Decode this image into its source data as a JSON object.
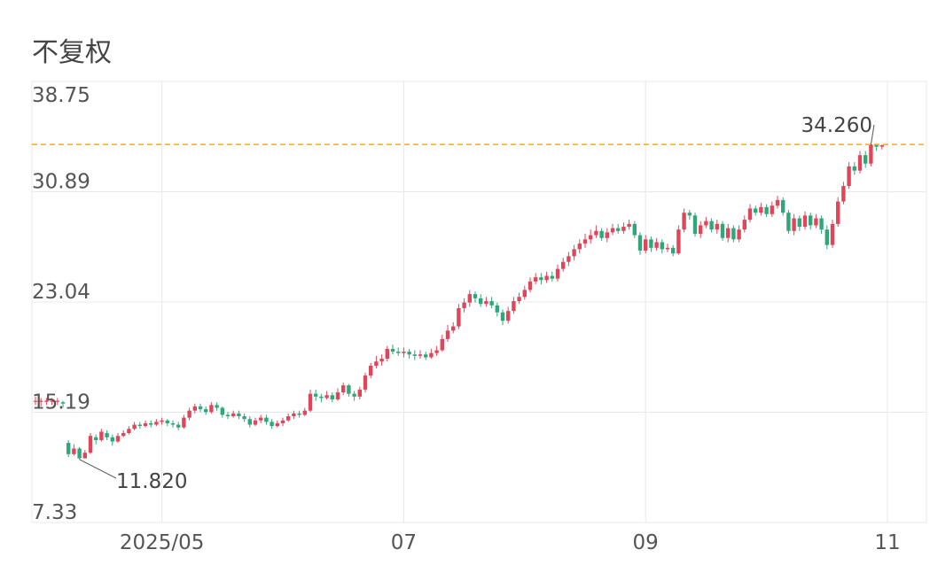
{
  "chart_data": {
    "type": "candlestick",
    "title": "不复权",
    "ylim": [
      7.33,
      38.75
    ],
    "y_ticks": [
      "38.75",
      "30.89",
      "23.04",
      "15.19",
      "7.33"
    ],
    "x_ticks": [
      {
        "label": "2025/05",
        "index": 23
      },
      {
        "label": "07",
        "index": 67
      },
      {
        "label": "09",
        "index": 111
      },
      {
        "label": "11",
        "index": 155
      }
    ],
    "reference_line": {
      "value": 34.26,
      "color": "#f5a623"
    },
    "annotations": {
      "high": "34.260",
      "low": "11.820"
    },
    "colors": {
      "up": "#e0455a",
      "down": "#2ea77a",
      "grid": "#e8e8e8"
    },
    "candles": [
      [
        16,
        16,
        16.3,
        15.7
      ],
      [
        16,
        16,
        16.2,
        15.6
      ],
      [
        16,
        16,
        16.2,
        15.7
      ],
      [
        16,
        16,
        16.2,
        15.7
      ],
      [
        16,
        16,
        16.2,
        15.7
      ],
      [
        15.9,
        15.8,
        16,
        15.5
      ],
      [
        13,
        12.2,
        13.2,
        12
      ],
      [
        12.2,
        12.6,
        12.9,
        12.1
      ],
      [
        12.6,
        11.9,
        12.7,
        11.82
      ],
      [
        11.9,
        12.3,
        12.5,
        11.9
      ],
      [
        12.3,
        13.5,
        13.7,
        12.2
      ],
      [
        13.4,
        13.2,
        13.6,
        12.9
      ],
      [
        13.2,
        13.8,
        14,
        13.1
      ],
      [
        13.7,
        13.4,
        13.9,
        13.2
      ],
      [
        13.4,
        13.1,
        13.6,
        12.8
      ],
      [
        13.1,
        13.5,
        13.7,
        13
      ],
      [
        13.5,
        13.7,
        13.9,
        13.4
      ],
      [
        13.7,
        14,
        14.2,
        13.6
      ],
      [
        14,
        14.3,
        14.5,
        13.9
      ],
      [
        14.3,
        14.2,
        14.5,
        14
      ],
      [
        14.2,
        14.4,
        14.6,
        14.1
      ],
      [
        14.4,
        14.3,
        14.6,
        14.1
      ],
      [
        14.3,
        14.5,
        14.7,
        14.2
      ],
      [
        14.5,
        14.6,
        14.8,
        14.3
      ],
      [
        14.6,
        14.4,
        14.7,
        14.2
      ],
      [
        14.4,
        14.3,
        14.6,
        14.1
      ],
      [
        14.3,
        14.1,
        14.5,
        13.9
      ],
      [
        14.1,
        14.8,
        15,
        14
      ],
      [
        14.8,
        15.3,
        15.5,
        14.6
      ],
      [
        15.3,
        15.6,
        15.8,
        15.1
      ],
      [
        15.6,
        15.4,
        15.8,
        15.2
      ],
      [
        15.4,
        15.2,
        15.6,
        15
      ],
      [
        15.2,
        15.7,
        15.9,
        15.1
      ],
      [
        15.7,
        15.5,
        15.9,
        15.3
      ],
      [
        15.5,
        15,
        15.6,
        14.8
      ],
      [
        15,
        14.9,
        15.2,
        14.7
      ],
      [
        14.9,
        15.1,
        15.3,
        14.8
      ],
      [
        15.1,
        14.9,
        15.3,
        14.7
      ],
      [
        14.9,
        14.7,
        15.1,
        14.5
      ],
      [
        14.7,
        14.3,
        14.9,
        14.1
      ],
      [
        14.3,
        14.6,
        14.8,
        14.2
      ],
      [
        14.6,
        14.8,
        15,
        14.4
      ],
      [
        14.8,
        14.5,
        15,
        14.3
      ],
      [
        14.5,
        14.2,
        14.7,
        14
      ],
      [
        14.2,
        14.4,
        14.6,
        14.1
      ],
      [
        14.4,
        14.6,
        14.8,
        14.2
      ],
      [
        14.6,
        14.9,
        15.1,
        14.5
      ],
      [
        14.9,
        15.1,
        15.3,
        14.7
      ],
      [
        15.1,
        15,
        15.3,
        14.8
      ],
      [
        15,
        15.3,
        15.5,
        14.9
      ],
      [
        15.3,
        16.5,
        16.8,
        15.2
      ],
      [
        16.5,
        16.3,
        16.8,
        16
      ],
      [
        16.3,
        16.2,
        16.5,
        15.9
      ],
      [
        16.2,
        16.4,
        16.7,
        16.1
      ],
      [
        16.4,
        16.1,
        16.6,
        15.9
      ],
      [
        16.1,
        16.6,
        16.9,
        16
      ],
      [
        16.6,
        17.1,
        17.3,
        16.4
      ],
      [
        17.1,
        16.5,
        17.2,
        16.3
      ],
      [
        16.5,
        16.3,
        16.7,
        16
      ],
      [
        16.3,
        16.8,
        17,
        16.1
      ],
      [
        16.8,
        17.8,
        18,
        16.6
      ],
      [
        17.8,
        18.5,
        18.7,
        17.6
      ],
      [
        18.5,
        18.8,
        19.2,
        18.3
      ],
      [
        18.8,
        19,
        19.3,
        18.5
      ],
      [
        19,
        19.7,
        19.9,
        18.8
      ],
      [
        19.7,
        19.5,
        20,
        19.3
      ],
      [
        19.5,
        19.4,
        19.8,
        19.2
      ],
      [
        19.4,
        19.5,
        19.8,
        19.1
      ],
      [
        19.5,
        19.3,
        19.7,
        19
      ],
      [
        19.3,
        19.2,
        19.6,
        18.9
      ],
      [
        19.2,
        19.3,
        19.6,
        19
      ],
      [
        19.3,
        19.1,
        19.5,
        18.9
      ],
      [
        19.1,
        19.4,
        19.7,
        19
      ],
      [
        19.4,
        19.6,
        19.9,
        19.2
      ],
      [
        19.6,
        20.4,
        20.7,
        19.5
      ],
      [
        20.4,
        21,
        21.4,
        20.2
      ],
      [
        21,
        21.3,
        21.6,
        20.8
      ],
      [
        21.3,
        22.6,
        22.9,
        21.1
      ],
      [
        22.6,
        23,
        23.3,
        22.3
      ],
      [
        23,
        23.6,
        23.9,
        22.7
      ],
      [
        23.6,
        23.3,
        23.8,
        23
      ],
      [
        23.3,
        22.9,
        23.6,
        22.7
      ],
      [
        22.9,
        23.1,
        23.4,
        22.7
      ],
      [
        23.1,
        22.8,
        23.4,
        22.6
      ],
      [
        22.8,
        22.3,
        23,
        22
      ],
      [
        22.3,
        21.7,
        22.5,
        21.4
      ],
      [
        21.7,
        22.4,
        22.7,
        21.5
      ],
      [
        22.4,
        23.1,
        23.4,
        22.2
      ],
      [
        23.1,
        23.4,
        23.7,
        22.9
      ],
      [
        23.4,
        23.9,
        24.2,
        23.2
      ],
      [
        23.9,
        24.5,
        24.8,
        23.7
      ],
      [
        24.5,
        24.8,
        25.1,
        24.3
      ],
      [
        24.8,
        24.6,
        25.1,
        24.3
      ],
      [
        24.6,
        24.9,
        25.2,
        24.4
      ],
      [
        24.9,
        24.7,
        25.2,
        24.5
      ],
      [
        24.7,
        25.4,
        25.7,
        24.5
      ],
      [
        25.4,
        25.9,
        26.2,
        25.2
      ],
      [
        25.9,
        26.3,
        26.6,
        25.6
      ],
      [
        26.3,
        26.8,
        27.1,
        26
      ],
      [
        26.8,
        27.2,
        27.5,
        26.5
      ],
      [
        27.2,
        27.5,
        27.9,
        26.9
      ],
      [
        27.5,
        27.8,
        28.2,
        27.2
      ],
      [
        27.8,
        28.1,
        28.5,
        27.6
      ],
      [
        28.1,
        27.6,
        28.3,
        27.4
      ],
      [
        27.6,
        28,
        28.3,
        27.3
      ],
      [
        28,
        28.3,
        28.6,
        27.8
      ],
      [
        28.3,
        28.1,
        28.6,
        27.9
      ],
      [
        28.1,
        28.4,
        28.7,
        27.9
      ],
      [
        28.4,
        28.6,
        28.9,
        28.2
      ],
      [
        28.6,
        27.8,
        28.8,
        27.6
      ],
      [
        27.8,
        26.7,
        28,
        26.4
      ],
      [
        26.7,
        27.5,
        27.8,
        26.5
      ],
      [
        27.5,
        26.9,
        27.7,
        26.6
      ],
      [
        26.9,
        27.3,
        27.6,
        26.7
      ],
      [
        27.3,
        26.8,
        27.5,
        26.5
      ],
      [
        26.8,
        26.9,
        27.2,
        26.6
      ],
      [
        26.9,
        26.5,
        27.1,
        26.3
      ],
      [
        26.5,
        28.2,
        28.5,
        26.4
      ],
      [
        28.2,
        29.4,
        29.7,
        28
      ],
      [
        29.4,
        29.2,
        29.6,
        28.9
      ],
      [
        29.2,
        27.9,
        29.4,
        27.7
      ],
      [
        27.9,
        28.5,
        28.8,
        27.6
      ],
      [
        28.5,
        28.8,
        29.1,
        28.3
      ],
      [
        28.8,
        28.2,
        29,
        28
      ],
      [
        28.2,
        28.6,
        28.9,
        27.9
      ],
      [
        28.6,
        27.6,
        28.8,
        27.4
      ],
      [
        27.6,
        28.3,
        28.6,
        27.3
      ],
      [
        28.3,
        27.5,
        28.5,
        27.3
      ],
      [
        27.5,
        28.2,
        28.5,
        27.3
      ],
      [
        28.2,
        28.9,
        29.2,
        28
      ],
      [
        28.9,
        29.7,
        30,
        28.7
      ],
      [
        29.7,
        29.4,
        29.9,
        29.2
      ],
      [
        29.4,
        29.8,
        30.1,
        29.2
      ],
      [
        29.8,
        29.3,
        30,
        29.1
      ],
      [
        29.3,
        29.9,
        30.2,
        29.1
      ],
      [
        29.9,
        30.3,
        30.6,
        29.7
      ],
      [
        30.3,
        29.4,
        30.5,
        29.2
      ],
      [
        29.4,
        28.1,
        29.6,
        27.9
      ],
      [
        28.1,
        29,
        29.3,
        27.8
      ],
      [
        29,
        28.4,
        29.2,
        28.1
      ],
      [
        28.4,
        29.2,
        29.5,
        28.2
      ],
      [
        29.2,
        28.5,
        29.4,
        28.2
      ],
      [
        28.5,
        29,
        29.3,
        28.3
      ],
      [
        29,
        28.2,
        29.2,
        27.9
      ],
      [
        28.2,
        27.1,
        28.5,
        26.8
      ],
      [
        27.1,
        28.6,
        28.9,
        26.9
      ],
      [
        28.6,
        30.2,
        30.5,
        28.4
      ],
      [
        30.2,
        31.3,
        31.6,
        30
      ],
      [
        31.3,
        32.7,
        33,
        31.1
      ],
      [
        32.7,
        32.4,
        33,
        32.1
      ],
      [
        32.4,
        33.5,
        33.8,
        32.2
      ],
      [
        33.5,
        32.9,
        33.8,
        32.6
      ],
      [
        32.9,
        34.26,
        34.26,
        32.7
      ],
      [
        34.26,
        34.1,
        34.26,
        33.8
      ],
      [
        34.1,
        34.2,
        34.26,
        33.9
      ]
    ]
  }
}
